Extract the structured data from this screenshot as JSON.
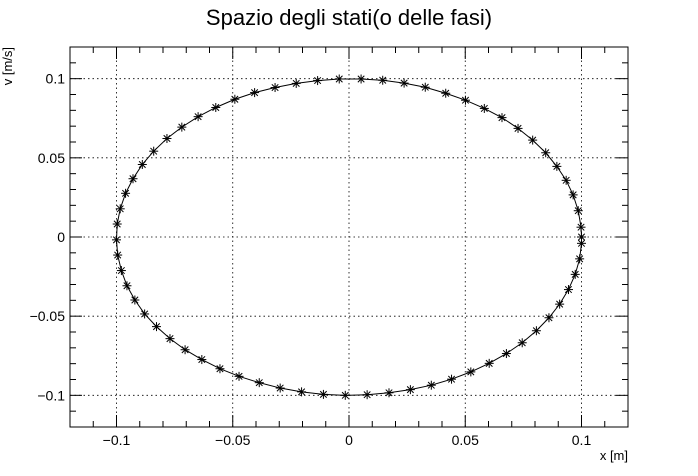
{
  "chart_data": {
    "type": "scatter",
    "title": "Spazio degli stati(o delle fasi)",
    "xlabel": "x [m]",
    "ylabel": "v [m/s]",
    "xlim": [
      -0.12,
      0.12
    ],
    "ylim": [
      -0.12,
      0.12
    ],
    "grid": true,
    "x_ticks": [
      -0.1,
      -0.05,
      0,
      0.05,
      0.1
    ],
    "x_tick_labels": [
      "−0.1",
      "−0.05",
      "0",
      "0.05",
      "0.1"
    ],
    "y_ticks": [
      -0.1,
      -0.05,
      0,
      0.05,
      0.1
    ],
    "y_tick_labels": [
      "−0.1",
      "−0.05",
      "0",
      "0.05",
      "0.1"
    ],
    "series": [
      {
        "marker": "asterisk",
        "line": "solid",
        "x": [
          0.1,
          0.0998,
          0.0986,
          0.0964,
          0.0934,
          0.0894,
          0.0846,
          0.079,
          0.0727,
          0.0658,
          0.0582,
          0.0501,
          0.0416,
          0.0328,
          0.0237,
          0.0145,
          0.0052,
          -0.0042,
          -0.0135,
          -0.0227,
          -0.0318,
          -0.0406,
          -0.0491,
          -0.0573,
          -0.0649,
          -0.0719,
          -0.0783,
          -0.084,
          -0.0889,
          -0.0929,
          -0.0961,
          -0.0984,
          -0.0997,
          -0.1,
          -0.0995,
          -0.0979,
          -0.0955,
          -0.0921,
          -0.0879,
          -0.0828,
          -0.077,
          -0.0705,
          -0.0633,
          -0.0555,
          -0.0473,
          -0.0386,
          -0.0296,
          -0.0204,
          -0.011,
          -0.0016,
          0.0078,
          0.0172,
          0.0264,
          0.0354,
          0.0441,
          0.0524,
          0.0603,
          0.0677,
          0.0745,
          0.0806,
          0.086,
          0.0906,
          0.0944,
          0.0973,
          0.0992,
          0.1
        ],
        "y": [
          0.0,
          0.0062,
          0.0166,
          0.0266,
          0.0358,
          0.0446,
          0.0532,
          0.0612,
          0.0686,
          0.0754,
          0.0812,
          0.0864,
          0.0908,
          0.0946,
          0.0972,
          0.099,
          0.0998,
          0.0998,
          0.0988,
          0.097,
          0.0944,
          0.0912,
          0.087,
          0.0818,
          0.076,
          0.0694,
          0.0622,
          0.0542,
          0.0458,
          0.0368,
          0.0276,
          0.0178,
          0.0082,
          -0.0018,
          -0.0114,
          -0.0212,
          -0.0308,
          -0.0398,
          -0.0486,
          -0.0566,
          -0.0642,
          -0.0712,
          -0.0774,
          -0.0832,
          -0.088,
          -0.092,
          -0.0954,
          -0.0978,
          -0.0994,
          -0.1,
          -0.0996,
          -0.0984,
          -0.0964,
          -0.0936,
          -0.0898,
          -0.0852,
          -0.0798,
          -0.0736,
          -0.0668,
          -0.0592,
          -0.051,
          -0.0424,
          -0.0332,
          -0.0236,
          -0.0138,
          -0.004
        ]
      }
    ]
  }
}
